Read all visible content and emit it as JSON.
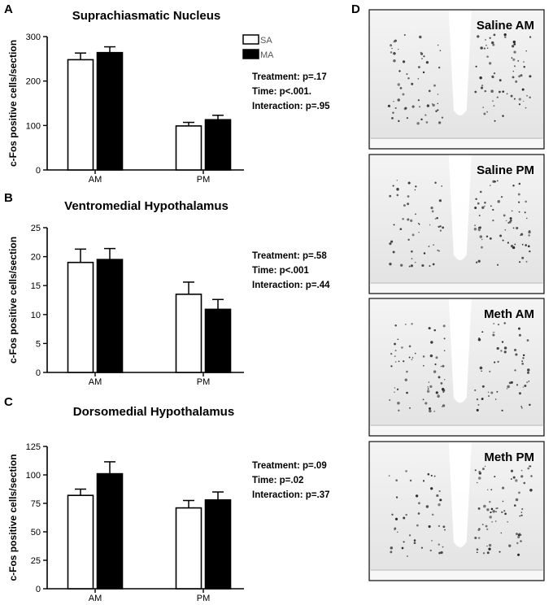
{
  "legend": {
    "entries": [
      {
        "label": "SA",
        "color": "#ffffff"
      },
      {
        "label": "MA",
        "color": "#000000"
      }
    ]
  },
  "chart_data": [
    {
      "type": "bar",
      "panel": "A",
      "title": "Suprachiasmatic Nucleus",
      "ylabel": "c-Fos positive cells/section",
      "xlabel": "",
      "categories": [
        "AM",
        "PM"
      ],
      "ylim": [
        0,
        300
      ],
      "yticks": [
        "0",
        "100",
        "200",
        "300"
      ],
      "series": [
        {
          "name": "SA",
          "color": "#ffffff",
          "values": [
            248,
            99
          ],
          "errors": [
            15,
            8
          ]
        },
        {
          "name": "MA",
          "color": "#000000",
          "values": [
            264,
            113
          ],
          "errors": [
            13,
            10
          ]
        }
      ],
      "stats": [
        "Treatment: p=.17",
        "Time: p<.001.",
        "Interaction: p=.95"
      ]
    },
    {
      "type": "bar",
      "panel": "B",
      "title": "Ventromedial Hypothalamus",
      "ylabel": "c-Fos positive cells/section",
      "xlabel": "",
      "categories": [
        "AM",
        "PM"
      ],
      "ylim": [
        0,
        25
      ],
      "yticks": [
        "0",
        "5",
        "10",
        "15",
        "20",
        "25"
      ],
      "series": [
        {
          "name": "SA",
          "color": "#ffffff",
          "values": [
            19.0,
            13.5
          ],
          "errors": [
            2.3,
            2.1
          ]
        },
        {
          "name": "MA",
          "color": "#000000",
          "values": [
            19.5,
            10.9
          ],
          "errors": [
            1.9,
            1.7
          ]
        }
      ],
      "stats": [
        "Treatment: p=.58",
        "Time: p<.001",
        "Interaction: p=.44"
      ]
    },
    {
      "type": "bar",
      "panel": "C",
      "title": "Dorsomedial Hypothalamus",
      "ylabel": "c-Fos positive cells/section",
      "xlabel": "",
      "categories": [
        "AM",
        "PM"
      ],
      "ylim": [
        0,
        125
      ],
      "yticks": [
        "0",
        "25",
        "50",
        "75",
        "100",
        "125"
      ],
      "series": [
        {
          "name": "SA",
          "color": "#ffffff",
          "values": [
            82,
            71
          ],
          "errors": [
            5.5,
            6.5
          ]
        },
        {
          "name": "MA",
          "color": "#000000",
          "values": [
            101,
            78
          ],
          "errors": [
            10.5,
            7
          ]
        }
      ],
      "stats": [
        "Treatment: p=.09",
        "Time: p=.02",
        "Interaction: p=.37"
      ]
    }
  ],
  "micrographs": {
    "panel": "D",
    "labels": [
      "Saline AM",
      "Saline PM",
      "Meth AM",
      "Meth PM"
    ]
  }
}
